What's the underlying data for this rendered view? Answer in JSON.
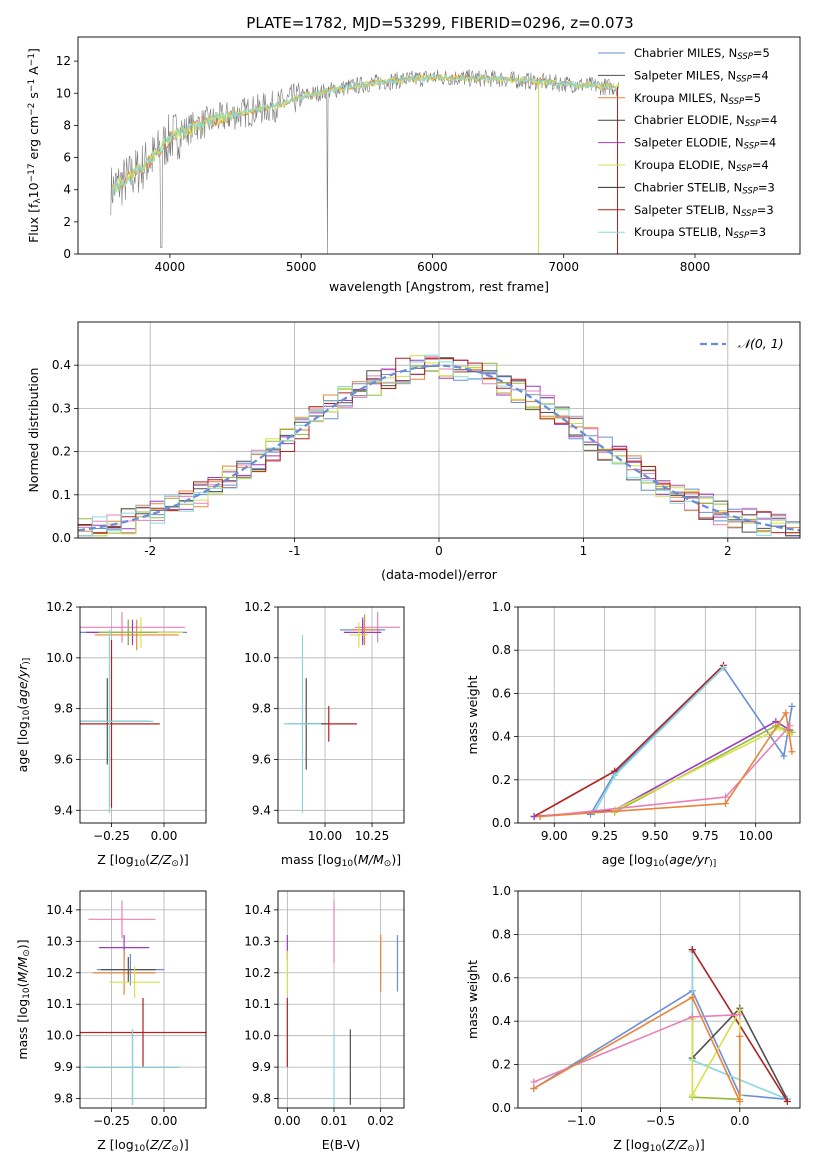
{
  "figure_title": "PLATE=1782, MJD=53299, FIBERID=0296, z=0.073",
  "colors": {
    "palette": [
      "#6a8fd6",
      "#e9843a",
      "#9ab93a",
      "#9b3cc0",
      "#e880b8",
      "#d5e04c",
      "#505050",
      "#b22020",
      "#8ad8de"
    ],
    "gauss": "#6a8fd6",
    "grid": "#b0b0b0"
  },
  "legend_spectra": [
    {
      "label": "Chabrier MILES, N",
      "sub": "SSP",
      "suffix": "=5",
      "color": "#6a8fd6"
    },
    {
      "label": "Salpeter MILES, N",
      "sub": "SSP",
      "suffix": "=4",
      "color": "#505050"
    },
    {
      "label": "Kroupa MILES, N",
      "sub": "SSP",
      "suffix": "=5",
      "color": "#e9843a"
    },
    {
      "label": "Chabrier ELODIE, N",
      "sub": "SSP",
      "suffix": "=4",
      "color": "#404040"
    },
    {
      "label": "Salpeter ELODIE, N",
      "sub": "SSP",
      "suffix": "=4",
      "color": "#9b3cc0"
    },
    {
      "label": "Kroupa ELODIE, N",
      "sub": "SSP",
      "suffix": "=4",
      "color": "#d5e04c"
    },
    {
      "label": "Chabrier STELIB, N",
      "sub": "SSP",
      "suffix": "=3",
      "color": "#303030"
    },
    {
      "label": "Salpeter STELIB, N",
      "sub": "SSP",
      "suffix": "=3",
      "color": "#b22020"
    },
    {
      "label": "Kroupa STELIB, N",
      "sub": "SSP",
      "suffix": "=3",
      "color": "#8ad8de"
    }
  ],
  "legend_gauss": "𝒩(0, 1)",
  "chart_data": [
    {
      "id": "spectrum",
      "type": "line",
      "xlabel": "wavelength [Angstrom, rest frame]",
      "ylabel_parts": [
        "Flux [f",
        "λ",
        "10",
        "−17",
        " erg cm",
        "−2",
        " s",
        "−1",
        " A",
        "−1",
        "]"
      ],
      "xlim": [
        3300,
        8800
      ],
      "ylim": [
        0,
        13.5
      ],
      "xticks": [
        4000,
        5000,
        6000,
        7000,
        8000
      ],
      "yticks": [
        0,
        2,
        4,
        6,
        8,
        10,
        12
      ],
      "continuum_x": [
        3550,
        3700,
        3900,
        4000,
        4200,
        4500,
        4800,
        5000,
        5300,
        5600,
        6000,
        6500,
        7000,
        7500,
        8000,
        8500
      ],
      "continuum_y": [
        4.0,
        4.8,
        6.2,
        7.2,
        8.0,
        8.7,
        9.2,
        9.8,
        10.3,
        10.7,
        11.0,
        10.9,
        10.6,
        10.3,
        10.1,
        9.9
      ]
    },
    {
      "id": "residuals",
      "type": "bar",
      "xlabel": "(data-model)/error",
      "ylabel": "Normed distribution",
      "xlim": [
        -2.5,
        2.5
      ],
      "ylim": [
        0,
        0.5
      ],
      "xticks": [
        -2,
        -1,
        0,
        1,
        2
      ],
      "yticks": [
        0.0,
        0.1,
        0.2,
        0.3,
        0.4
      ],
      "bin_width": 0.1
    },
    {
      "id": "age_vs_Z",
      "type": "scatter",
      "xlabel_parts": [
        "Z [log",
        "10",
        "(",
        "Z/Z",
        "⊙",
        ")]"
      ],
      "ylabel_parts": [
        "age  [log",
        "10",
        "(",
        "age/yr",
        ")]"
      ],
      "xlim": [
        -0.4,
        0.2
      ],
      "ylim": [
        9.35,
        10.2
      ],
      "xticks": [
        -0.25,
        0.0
      ],
      "xticklabels": [
        "−0.25",
        "0.00"
      ],
      "yticks": [
        9.4,
        9.6,
        9.8,
        10.0,
        10.2
      ],
      "points": [
        {
          "x": -0.2,
          "y": 10.12,
          "ex": 0.3,
          "ey": 0.06,
          "color": "#e880b8"
        },
        {
          "x": -0.17,
          "y": 10.1,
          "ex": 0.28,
          "ey": 0.05,
          "color": "#6a8fd6"
        },
        {
          "x": -0.15,
          "y": 10.1,
          "ex": 0.22,
          "ey": 0.05,
          "color": "#9b3cc0"
        },
        {
          "x": -0.13,
          "y": 10.09,
          "ex": 0.2,
          "ey": 0.06,
          "color": "#e9843a"
        },
        {
          "x": -0.11,
          "y": 10.1,
          "ex": 0.2,
          "ey": 0.06,
          "color": "#d5e04c"
        },
        {
          "x": -0.17,
          "y": 10.1,
          "ex": 0.14,
          "ey": 0.05,
          "color": "#9ab93a"
        },
        {
          "x": -0.27,
          "y": 9.75,
          "ex": 0.2,
          "ey": 0.17,
          "color": "#505050"
        },
        {
          "x": -0.25,
          "y": 9.74,
          "ex": 0.23,
          "ey": 0.33,
          "color": "#b22020"
        },
        {
          "x": -0.26,
          "y": 9.75,
          "ex": 0.21,
          "ey": 0.36,
          "color": "#8ad8de"
        }
      ]
    },
    {
      "id": "age_vs_mass",
      "type": "scatter",
      "xlabel_parts": [
        "mass [log",
        "10",
        "(",
        "M/M",
        "⊙",
        ")]"
      ],
      "ylabel_parts": [],
      "xlim": [
        9.75,
        10.42
      ],
      "ylim": [
        9.35,
        10.2
      ],
      "xticks": [
        10.0,
        10.25
      ],
      "xticklabels": [
        "10.00",
        "10.25"
      ],
      "yticks": [
        9.4,
        9.6,
        9.8,
        10.0,
        10.2
      ],
      "points": [
        {
          "x": 10.28,
          "y": 10.12,
          "ex": 0.12,
          "ey": 0.06,
          "color": "#e880b8"
        },
        {
          "x": 10.2,
          "y": 10.11,
          "ex": 0.12,
          "ey": 0.05,
          "color": "#6a8fd6"
        },
        {
          "x": 10.2,
          "y": 10.1,
          "ex": 0.1,
          "ey": 0.05,
          "color": "#9b3cc0"
        },
        {
          "x": 10.21,
          "y": 10.11,
          "ex": 0.07,
          "ey": 0.06,
          "color": "#e9843a"
        },
        {
          "x": 10.18,
          "y": 10.09,
          "ex": 0.05,
          "ey": 0.05,
          "color": "#d5e04c"
        },
        {
          "x": 10.02,
          "y": 9.74,
          "ex": 0.15,
          "ey": 0.07,
          "color": "#b22020"
        },
        {
          "x": 9.9,
          "y": 9.74,
          "ex": 0.1,
          "ey": 0.18,
          "color": "#505050"
        },
        {
          "x": 9.88,
          "y": 9.74,
          "ex": 0.1,
          "ey": 0.35,
          "color": "#8ad8de"
        }
      ]
    },
    {
      "id": "mass_weight_vs_age",
      "type": "line",
      "xlabel_parts": [
        "age  [log",
        "10",
        "(",
        "age/yr",
        ")]"
      ],
      "ylabel": "mass weight",
      "xlim": [
        8.82,
        10.22
      ],
      "ylim": [
        0,
        1.0
      ],
      "xticks": [
        9.0,
        9.25,
        9.5,
        9.75,
        10.0
      ],
      "xticklabels": [
        "9.00",
        "9.25",
        "9.50",
        "9.75",
        "10.00"
      ],
      "yticks": [
        0.0,
        0.2,
        0.4,
        0.6,
        0.8,
        1.0
      ],
      "series": [
        {
          "color": "#6a8fd6",
          "x": [
            9.18,
            9.3,
            9.84,
            10.14,
            10.18
          ],
          "y": [
            0.04,
            0.23,
            0.72,
            0.31,
            0.54
          ]
        },
        {
          "color": "#b22020",
          "x": [
            8.9,
            9.3,
            9.84
          ],
          "y": [
            0.03,
            0.24,
            0.73
          ]
        },
        {
          "color": "#8ad8de",
          "x": [
            9.2,
            9.3,
            9.84
          ],
          "y": [
            0.05,
            0.22,
            0.72
          ]
        },
        {
          "color": "#9b3cc0",
          "x": [
            8.9,
            9.3,
            10.1,
            10.17
          ],
          "y": [
            0.03,
            0.06,
            0.47,
            0.43
          ]
        },
        {
          "color": "#9ab93a",
          "x": [
            9.3,
            10.1,
            10.18
          ],
          "y": [
            0.05,
            0.45,
            0.42
          ]
        },
        {
          "color": "#d5e04c",
          "x": [
            9.3,
            10.12,
            10.17
          ],
          "y": [
            0.06,
            0.44,
            0.41
          ]
        },
        {
          "color": "#e880b8",
          "x": [
            8.93,
            9.85,
            10.17
          ],
          "y": [
            0.03,
            0.12,
            0.45
          ]
        },
        {
          "color": "#e9843a",
          "x": [
            8.93,
            9.85,
            10.15,
            10.18
          ],
          "y": [
            0.03,
            0.09,
            0.51,
            0.33
          ]
        }
      ]
    },
    {
      "id": "mass_vs_Z",
      "type": "scatter",
      "xlabel_parts": [
        "Z [log",
        "10",
        "(",
        "Z/Z",
        "⊙",
        ")]"
      ],
      "ylabel_parts": [
        "mass [log",
        "10",
        "(",
        "M/M",
        "⊙",
        ")]"
      ],
      "xlim": [
        -0.4,
        0.2
      ],
      "ylim": [
        9.77,
        10.46
      ],
      "xticks": [
        -0.25,
        0.0
      ],
      "xticklabels": [
        "−0.25",
        "0.00"
      ],
      "yticks": [
        9.8,
        9.9,
        10.0,
        10.1,
        10.2,
        10.3,
        10.4
      ],
      "points": [
        {
          "x": -0.2,
          "y": 10.37,
          "ex": 0.16,
          "ey": 0.06,
          "color": "#e880b8"
        },
        {
          "x": -0.19,
          "y": 10.28,
          "ex": 0.12,
          "ey": 0.04,
          "color": "#9b3cc0"
        },
        {
          "x": -0.16,
          "y": 10.21,
          "ex": 0.16,
          "ey": 0.05,
          "color": "#6a8fd6"
        },
        {
          "x": -0.19,
          "y": 10.2,
          "ex": 0.15,
          "ey": 0.07,
          "color": "#e9843a"
        },
        {
          "x": -0.17,
          "y": 10.21,
          "ex": 0.13,
          "ey": 0.04,
          "color": "#505050"
        },
        {
          "x": -0.14,
          "y": 10.17,
          "ex": 0.12,
          "ey": 0.05,
          "color": "#d5e04c"
        },
        {
          "x": -0.1,
          "y": 10.01,
          "ex": 0.31,
          "ey": 0.11,
          "color": "#b22020"
        },
        {
          "x": -0.15,
          "y": 9.9,
          "ex": 0.22,
          "ey": 0.12,
          "color": "#505050"
        },
        {
          "x": -0.15,
          "y": 9.9,
          "ex": 0.23,
          "ey": 0.12,
          "color": "#8ad8de"
        }
      ]
    },
    {
      "id": "mass_vs_ebv",
      "type": "scatter",
      "xlabel": "E(B-V)",
      "xlim": [
        -0.002,
        0.025
      ],
      "ylim": [
        9.77,
        10.46
      ],
      "xticks": [
        0.0,
        0.01,
        0.02
      ],
      "xticklabels": [
        "0.00",
        "0.01",
        "0.02"
      ],
      "yticks": [
        9.8,
        9.9,
        10.0,
        10.1,
        10.2,
        10.3,
        10.4
      ],
      "points": [
        {
          "x": 0.0,
          "y": 10.28,
          "ex": 0,
          "ey": 0.04,
          "color": "#9b3cc0"
        },
        {
          "x": 0.0,
          "y": 10.2,
          "ex": 0,
          "ey": 0.07,
          "color": "#d5e04c"
        },
        {
          "x": 0.0,
          "y": 10.01,
          "ex": 0,
          "ey": 0.11,
          "color": "#b22020"
        },
        {
          "x": 0.01,
          "y": 10.33,
          "ex": 0,
          "ey": 0.1,
          "color": "#e880b8"
        },
        {
          "x": 0.01,
          "y": 9.89,
          "ex": 0,
          "ey": 0.12,
          "color": "#8ad8de"
        },
        {
          "x": 0.0135,
          "y": 9.9,
          "ex": 0,
          "ey": 0.12,
          "color": "#505050"
        },
        {
          "x": 0.02,
          "y": 10.23,
          "ex": 0,
          "ey": 0.09,
          "color": "#e9843a"
        },
        {
          "x": 0.0236,
          "y": 10.23,
          "ex": 0,
          "ey": 0.09,
          "color": "#6a8fd6"
        }
      ]
    },
    {
      "id": "mass_weight_vs_Z",
      "type": "line",
      "xlabel_parts": [
        "Z [log",
        "10",
        "(",
        "Z/Z",
        "⊙",
        ")]"
      ],
      "ylabel": "mass weight",
      "xlim": [
        -1.4,
        0.38
      ],
      "ylim": [
        0,
        1.0
      ],
      "xticks": [
        -1.0,
        -0.5,
        0.0
      ],
      "xticklabels": [
        "−1.0",
        "−0.5",
        "0.0"
      ],
      "yticks": [
        0.0,
        0.2,
        0.4,
        0.6,
        0.8,
        1.0
      ],
      "series": [
        {
          "color": "#6a8fd6",
          "x": [
            -1.3,
            -0.3,
            0.0,
            0.3
          ],
          "y": [
            0.09,
            0.54,
            0.06,
            0.04
          ]
        },
        {
          "color": "#505050",
          "x": [
            -0.3,
            -0.3,
            0.0,
            0.3
          ],
          "y": [
            0.73,
            0.23,
            0.46,
            0.04
          ]
        },
        {
          "color": "#8ad8de",
          "x": [
            -0.3,
            -0.3,
            0.3
          ],
          "y": [
            0.72,
            0.22,
            0.04
          ]
        },
        {
          "color": "#b22020",
          "x": [
            -0.3,
            0.3
          ],
          "y": [
            0.73,
            0.03
          ]
        },
        {
          "color": "#9ab93a",
          "x": [
            -0.3,
            -0.3,
            0.0
          ],
          "y": [
            0.42,
            0.05,
            0.04
          ]
        },
        {
          "color": "#d5e04c",
          "x": [
            -0.3,
            -0.3,
            0.0,
            0.0
          ],
          "y": [
            0.41,
            0.06,
            0.45,
            0.06
          ]
        },
        {
          "color": "#e880b8",
          "x": [
            -1.3,
            -0.3,
            0.0
          ],
          "y": [
            0.12,
            0.42,
            0.43
          ]
        },
        {
          "color": "#e9843a",
          "x": [
            -1.3,
            -0.3,
            0.0,
            0.0
          ],
          "y": [
            0.09,
            0.51,
            0.03,
            0.33
          ]
        }
      ]
    }
  ]
}
